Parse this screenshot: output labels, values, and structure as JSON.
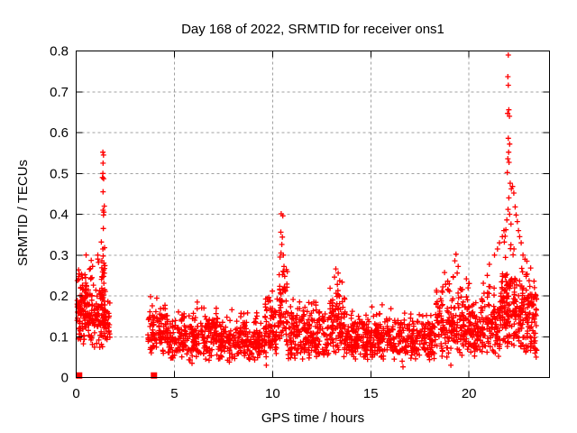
{
  "page": {
    "background": "#ffffff"
  },
  "chart_data": {
    "type": "scatter",
    "title": "Day 168 of 2022, SRMTID for receiver ons1",
    "xlabel": "GPS time / hours",
    "ylabel": "SRMTID / TECUs",
    "xlim": [
      0,
      24.1
    ],
    "ylim": [
      0,
      0.8
    ],
    "xticks": [
      {
        "v": 0,
        "label": "0"
      },
      {
        "v": 5,
        "label": "5"
      },
      {
        "v": 10,
        "label": "10"
      },
      {
        "v": 15,
        "label": "15"
      },
      {
        "v": 20,
        "label": "20"
      }
    ],
    "yticks": [
      {
        "v": 0,
        "label": "0"
      },
      {
        "v": 0.1,
        "label": "0.1"
      },
      {
        "v": 0.2,
        "label": "0.2"
      },
      {
        "v": 0.3,
        "label": "0.3"
      },
      {
        "v": 0.4,
        "label": "0.4"
      },
      {
        "v": 0.5,
        "label": "0.5"
      },
      {
        "v": 0.6,
        "label": "0.6"
      },
      {
        "v": 0.7,
        "label": "0.7"
      },
      {
        "v": 0.8,
        "label": "0.8"
      }
    ],
    "grid": {
      "show": true,
      "color": "#a0a0a0",
      "dash": "3,3"
    },
    "colors": {
      "marker": "#ff0000",
      "axis": "#000000",
      "text": "#000000"
    },
    "legend": "none",
    "seed": 168,
    "series": [
      {
        "name": "srmtid-plus",
        "marker": "plus",
        "clusters": [
          {
            "x0": 0.05,
            "x1": 0.92,
            "n": 150,
            "mean": 0.16,
            "sd": 0.055,
            "ymin": 0.08,
            "ymax": 0.305
          },
          {
            "x0": 0.9,
            "x1": 1.5,
            "n": 75,
            "mean": 0.145,
            "sd": 0.05,
            "ymin": 0.07,
            "ymax": 0.3
          },
          {
            "x0": 1.3,
            "x1": 1.46,
            "n": 28,
            "mean": 0.22,
            "sd": 0.065,
            "ymin": 0.1,
            "ymax": 0.335
          },
          {
            "x0": 1.45,
            "x1": 1.72,
            "n": 26,
            "mean": 0.125,
            "sd": 0.04,
            "ymin": 0.07,
            "ymax": 0.25
          },
          {
            "x0": 3.65,
            "x1": 4.6,
            "n": 95,
            "mean": 0.105,
            "sd": 0.042,
            "ymin": 0.05,
            "ymax": 0.215
          },
          {
            "x0": 4.6,
            "x1": 9.6,
            "n": 500,
            "mean": 0.09,
            "sd": 0.033,
            "ymin": 0.042,
            "ymax": 0.2
          },
          {
            "x0": 9.6,
            "x1": 10.32,
            "n": 80,
            "mean": 0.115,
            "sd": 0.045,
            "ymin": 0.05,
            "ymax": 0.24
          },
          {
            "x0": 10.32,
            "x1": 10.75,
            "n": 55,
            "mean": 0.155,
            "sd": 0.065,
            "ymin": 0.06,
            "ymax": 0.385
          },
          {
            "x0": 10.75,
            "x1": 12.85,
            "n": 230,
            "mean": 0.1,
            "sd": 0.04,
            "ymin": 0.045,
            "ymax": 0.225
          },
          {
            "x0": 12.85,
            "x1": 13.7,
            "n": 105,
            "mean": 0.13,
            "sd": 0.05,
            "ymin": 0.05,
            "ymax": 0.265
          },
          {
            "x0": 13.7,
            "x1": 18.3,
            "n": 480,
            "mean": 0.092,
            "sd": 0.032,
            "ymin": 0.042,
            "ymax": 0.19
          },
          {
            "x0": 18.3,
            "x1": 19.65,
            "n": 145,
            "mean": 0.128,
            "sd": 0.055,
            "ymin": 0.05,
            "ymax": 0.295
          },
          {
            "x0": 19.65,
            "x1": 21.6,
            "n": 235,
            "mean": 0.125,
            "sd": 0.046,
            "ymin": 0.05,
            "ymax": 0.28
          },
          {
            "x0": 21.6,
            "x1": 22.35,
            "n": 125,
            "mean": 0.17,
            "sd": 0.06,
            "ymin": 0.07,
            "ymax": 0.355
          },
          {
            "x0": 22.35,
            "x1": 23.45,
            "n": 150,
            "mean": 0.145,
            "sd": 0.055,
            "ymin": 0.05,
            "ymax": 0.3
          }
        ],
        "outliers": [
          [
            1.36,
            0.552
          ],
          [
            1.39,
            0.545
          ],
          [
            1.37,
            0.525
          ],
          [
            1.36,
            0.5
          ],
          [
            1.34,
            0.49
          ],
          [
            1.4,
            0.487
          ],
          [
            1.37,
            0.455
          ],
          [
            1.43,
            0.42
          ],
          [
            1.37,
            0.41
          ],
          [
            1.41,
            0.405
          ],
          [
            1.39,
            0.398
          ],
          [
            1.38,
            0.365
          ],
          [
            1.36,
            0.315
          ],
          [
            1.28,
            0.332
          ],
          [
            1.1,
            0.3
          ],
          [
            10.44,
            0.401
          ],
          [
            10.52,
            0.396
          ],
          [
            10.42,
            0.356
          ],
          [
            10.5,
            0.344
          ],
          [
            10.47,
            0.326
          ],
          [
            10.43,
            0.305
          ],
          [
            10.55,
            0.3
          ],
          [
            10.38,
            0.295
          ],
          [
            10.58,
            0.272
          ],
          [
            10.34,
            0.252
          ],
          [
            10.62,
            0.248
          ],
          [
            13.22,
            0.266
          ],
          [
            13.34,
            0.256
          ],
          [
            13.15,
            0.246
          ],
          [
            13.42,
            0.237
          ],
          [
            13.3,
            0.228
          ],
          [
            19.34,
            0.302
          ],
          [
            19.28,
            0.286
          ],
          [
            19.45,
            0.272
          ],
          [
            19.4,
            0.256
          ],
          [
            19.2,
            0.247
          ],
          [
            21.3,
            0.3
          ],
          [
            21.45,
            0.315
          ],
          [
            21.55,
            0.33
          ],
          [
            21.7,
            0.345
          ],
          [
            21.78,
            0.36
          ],
          [
            22.0,
            0.79
          ],
          [
            21.98,
            0.737
          ],
          [
            22.0,
            0.716
          ],
          [
            22.03,
            0.656
          ],
          [
            21.97,
            0.647
          ],
          [
            22.06,
            0.64
          ],
          [
            22.0,
            0.586
          ],
          [
            22.07,
            0.572
          ],
          [
            22.02,
            0.552
          ],
          [
            21.98,
            0.536
          ],
          [
            22.04,
            0.527
          ],
          [
            21.95,
            0.502
          ],
          [
            22.1,
            0.476
          ],
          [
            22.16,
            0.462
          ],
          [
            22.03,
            0.44
          ],
          [
            22.22,
            0.468
          ],
          [
            22.28,
            0.452
          ],
          [
            21.99,
            0.412
          ],
          [
            22.07,
            0.4
          ],
          [
            21.93,
            0.386
          ],
          [
            22.14,
            0.376
          ],
          [
            21.88,
            0.362
          ],
          [
            21.84,
            0.346
          ],
          [
            21.8,
            0.332
          ],
          [
            22.35,
            0.418
          ],
          [
            22.4,
            0.398
          ],
          [
            22.46,
            0.382
          ],
          [
            22.52,
            0.36
          ],
          [
            22.58,
            0.345
          ],
          [
            22.66,
            0.33
          ],
          [
            22.75,
            0.3
          ],
          [
            22.85,
            0.29
          ],
          [
            22.95,
            0.285
          ],
          [
            9.68,
            0.03
          ],
          [
            16.6,
            0.04
          ],
          [
            16.64,
            0.026
          ],
          [
            19.08,
            0.03
          ],
          [
            5.9,
            0.035
          ],
          [
            7.8,
            0.038
          ],
          [
            23.3,
            0.072
          ],
          [
            23.36,
            0.06
          ],
          [
            23.42,
            0.05
          ]
        ]
      },
      {
        "name": "srmtid-zero-squares",
        "marker": "square",
        "points": [
          [
            0.15,
            0.005
          ],
          [
            3.96,
            0.005
          ]
        ]
      }
    ]
  }
}
